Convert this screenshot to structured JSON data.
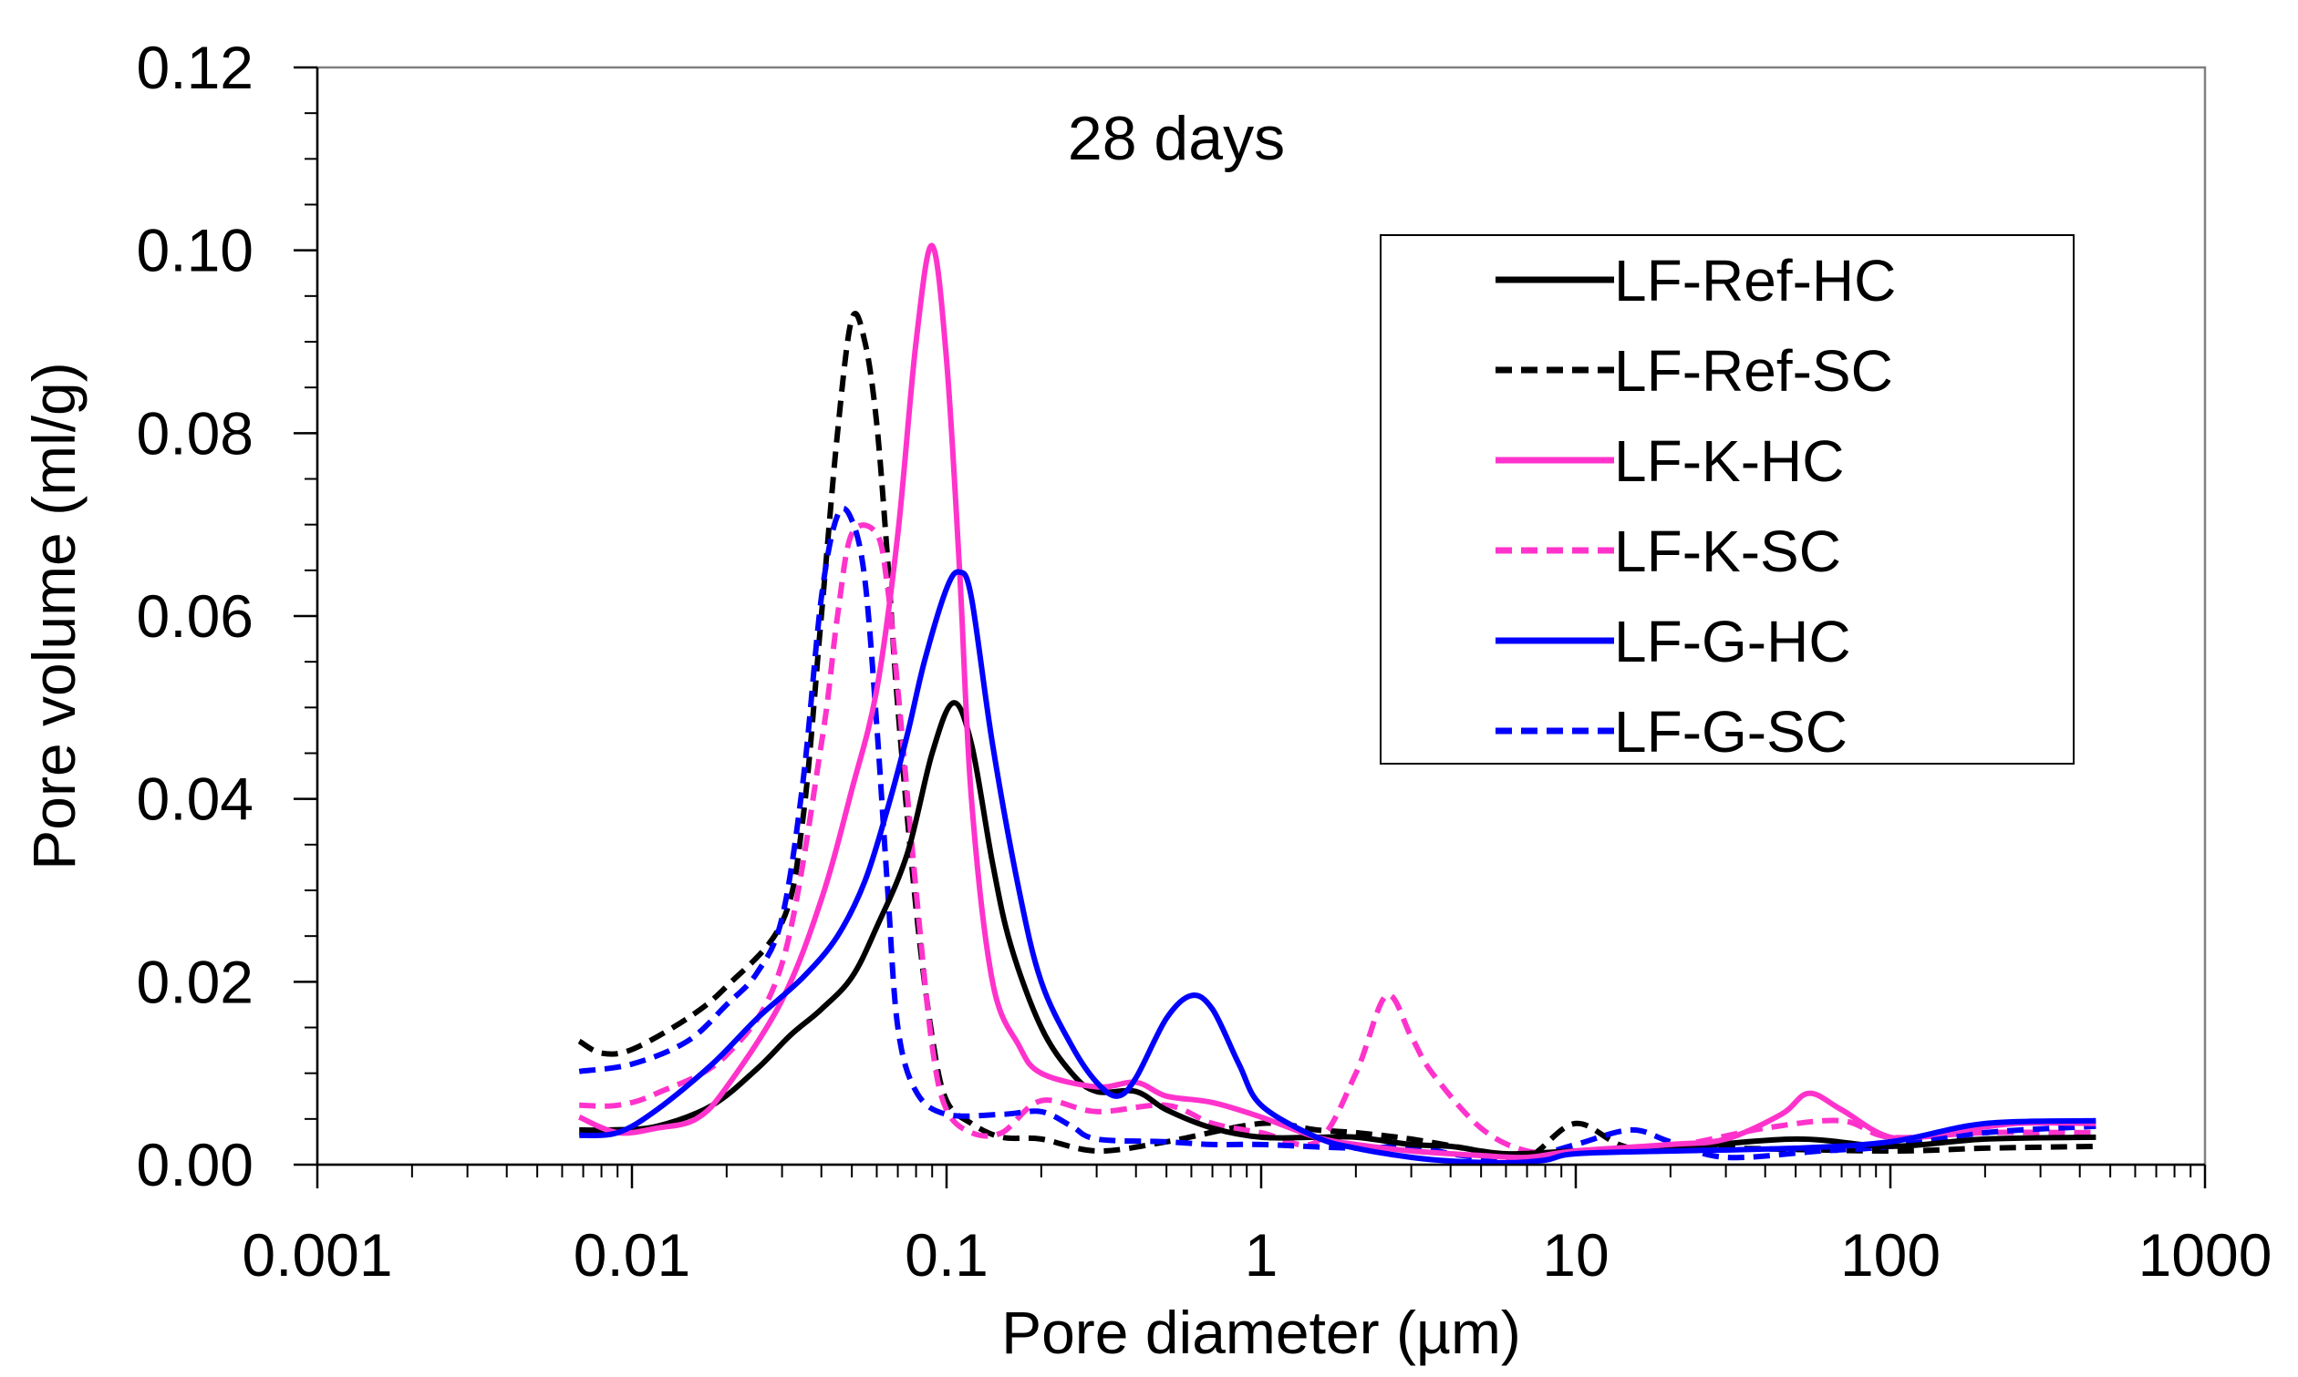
{
  "chart_data": {
    "type": "line",
    "annotation": "28 days",
    "xlabel": "Pore diameter (µm)",
    "ylabel": "Pore volume (ml/g)",
    "xscale": "log",
    "xlim": [
      0.001,
      1000
    ],
    "ylim": [
      0,
      0.12
    ],
    "x_ticks": [
      {
        "value": 0.001,
        "label": "0.001"
      },
      {
        "value": 0.01,
        "label": "0.01"
      },
      {
        "value": 0.1,
        "label": "0.1"
      },
      {
        "value": 1,
        "label": "1"
      },
      {
        "value": 10,
        "label": "10"
      },
      {
        "value": 100,
        "label": "100"
      },
      {
        "value": 1000,
        "label": "1000"
      }
    ],
    "y_ticks": [
      {
        "value": 0,
        "label": "0.00"
      },
      {
        "value": 0.02,
        "label": "0.02"
      },
      {
        "value": 0.04,
        "label": "0.04"
      },
      {
        "value": 0.06,
        "label": "0.06"
      },
      {
        "value": 0.08,
        "label": "0.08"
      },
      {
        "value": 0.1,
        "label": "0.10"
      },
      {
        "value": 0.12,
        "label": "0.12"
      }
    ],
    "legend_position": "right",
    "series": [
      {
        "name": "LF-Ref-HC",
        "color": "#000000",
        "dash": "solid",
        "points": [
          [
            0.0068,
            0.0038
          ],
          [
            0.0085,
            0.0038
          ],
          [
            0.012,
            0.0042
          ],
          [
            0.018,
            0.0065
          ],
          [
            0.025,
            0.0105
          ],
          [
            0.032,
            0.0142
          ],
          [
            0.04,
            0.017
          ],
          [
            0.05,
            0.0205
          ],
          [
            0.06,
            0.026
          ],
          [
            0.075,
            0.034
          ],
          [
            0.09,
            0.045
          ],
          [
            0.105,
            0.0505
          ],
          [
            0.12,
            0.046
          ],
          [
            0.14,
            0.033
          ],
          [
            0.16,
            0.024
          ],
          [
            0.2,
            0.015
          ],
          [
            0.25,
            0.01
          ],
          [
            0.3,
            0.008
          ],
          [
            0.4,
            0.008
          ],
          [
            0.5,
            0.006
          ],
          [
            0.7,
            0.004
          ],
          [
            1,
            0.003
          ],
          [
            1.5,
            0.003
          ],
          [
            2,
            0.003
          ],
          [
            3,
            0.0022
          ],
          [
            4,
            0.002
          ],
          [
            6,
            0.0012
          ],
          [
            10,
            0.0015
          ],
          [
            20,
            0.0018
          ],
          [
            50,
            0.0028
          ],
          [
            100,
            0.002
          ],
          [
            200,
            0.0028
          ],
          [
            450,
            0.003
          ]
        ]
      },
      {
        "name": "LF-Ref-SC",
        "color": "#000000",
        "dash": "dashed",
        "points": [
          [
            0.0068,
            0.0135
          ],
          [
            0.008,
            0.0122
          ],
          [
            0.01,
            0.0126
          ],
          [
            0.015,
            0.016
          ],
          [
            0.02,
            0.0195
          ],
          [
            0.03,
            0.0265
          ],
          [
            0.035,
            0.038
          ],
          [
            0.04,
            0.06
          ],
          [
            0.045,
            0.08
          ],
          [
            0.05,
            0.0925
          ],
          [
            0.055,
            0.09
          ],
          [
            0.06,
            0.081
          ],
          [
            0.065,
            0.066
          ],
          [
            0.07,
            0.05
          ],
          [
            0.08,
            0.028
          ],
          [
            0.09,
            0.014
          ],
          [
            0.1,
            0.007
          ],
          [
            0.12,
            0.0045
          ],
          [
            0.15,
            0.003
          ],
          [
            0.2,
            0.0028
          ],
          [
            0.3,
            0.0015
          ],
          [
            0.5,
            0.0025
          ],
          [
            1,
            0.0045
          ],
          [
            1.5,
            0.0038
          ],
          [
            2,
            0.0035
          ],
          [
            3,
            0.0028
          ],
          [
            5,
            0.0015
          ],
          [
            7,
            0.0008
          ],
          [
            10,
            0.0045
          ],
          [
            15,
            0.0018
          ],
          [
            30,
            0.0018
          ],
          [
            100,
            0.0015
          ],
          [
            200,
            0.0018
          ],
          [
            450,
            0.002
          ]
        ]
      },
      {
        "name": "LF-K-HC",
        "color": "#ff33cc",
        "dash": "solid",
        "points": [
          [
            0.0068,
            0.0052
          ],
          [
            0.009,
            0.0035
          ],
          [
            0.012,
            0.004
          ],
          [
            0.016,
            0.005
          ],
          [
            0.02,
            0.0085
          ],
          [
            0.03,
            0.018
          ],
          [
            0.04,
            0.029
          ],
          [
            0.05,
            0.041
          ],
          [
            0.06,
            0.052
          ],
          [
            0.07,
            0.069
          ],
          [
            0.08,
            0.09
          ],
          [
            0.09,
            0.1005
          ],
          [
            0.1,
            0.088
          ],
          [
            0.11,
            0.065
          ],
          [
            0.12,
            0.04
          ],
          [
            0.14,
            0.02
          ],
          [
            0.17,
            0.013
          ],
          [
            0.2,
            0.01
          ],
          [
            0.3,
            0.0085
          ],
          [
            0.4,
            0.009
          ],
          [
            0.5,
            0.0075
          ],
          [
            0.7,
            0.0068
          ],
          [
            1,
            0.0052
          ],
          [
            1.5,
            0.003
          ],
          [
            2,
            0.0022
          ],
          [
            3,
            0.0015
          ],
          [
            5,
            0.001
          ],
          [
            7,
            0.0008
          ],
          [
            10,
            0.0015
          ],
          [
            20,
            0.0022
          ],
          [
            30,
            0.0028
          ],
          [
            45,
            0.0055
          ],
          [
            55,
            0.0078
          ],
          [
            70,
            0.006
          ],
          [
            100,
            0.003
          ],
          [
            150,
            0.0035
          ],
          [
            250,
            0.0045
          ],
          [
            450,
            0.0045
          ]
        ]
      },
      {
        "name": "LF-K-SC",
        "color": "#ff33cc",
        "dash": "dashed",
        "points": [
          [
            0.0068,
            0.0065
          ],
          [
            0.009,
            0.0065
          ],
          [
            0.012,
            0.0078
          ],
          [
            0.02,
            0.012
          ],
          [
            0.03,
            0.022
          ],
          [
            0.04,
            0.046
          ],
          [
            0.045,
            0.06
          ],
          [
            0.05,
            0.069
          ],
          [
            0.06,
            0.069
          ],
          [
            0.065,
            0.063
          ],
          [
            0.07,
            0.052
          ],
          [
            0.08,
            0.03
          ],
          [
            0.09,
            0.013
          ],
          [
            0.1,
            0.006
          ],
          [
            0.12,
            0.0035
          ],
          [
            0.15,
            0.0035
          ],
          [
            0.2,
            0.007
          ],
          [
            0.3,
            0.0058
          ],
          [
            0.5,
            0.0065
          ],
          [
            0.7,
            0.0045
          ],
          [
            1,
            0.0035
          ],
          [
            1.5,
            0.0025
          ],
          [
            2,
            0.01
          ],
          [
            2.5,
            0.0185
          ],
          [
            3,
            0.014
          ],
          [
            3.5,
            0.01
          ],
          [
            5,
            0.004
          ],
          [
            7,
            0.0015
          ],
          [
            10,
            0.0015
          ],
          [
            20,
            0.002
          ],
          [
            40,
            0.004
          ],
          [
            70,
            0.0048
          ],
          [
            100,
            0.003
          ],
          [
            200,
            0.0035
          ],
          [
            450,
            0.0035
          ]
        ]
      },
      {
        "name": "LF-G-HC",
        "color": "#0000ff",
        "dash": "solid",
        "points": [
          [
            0.0068,
            0.0032
          ],
          [
            0.009,
            0.0035
          ],
          [
            0.012,
            0.006
          ],
          [
            0.018,
            0.011
          ],
          [
            0.025,
            0.016
          ],
          [
            0.035,
            0.0205
          ],
          [
            0.045,
            0.025
          ],
          [
            0.055,
            0.031
          ],
          [
            0.065,
            0.039
          ],
          [
            0.075,
            0.047
          ],
          [
            0.085,
            0.055
          ],
          [
            0.1,
            0.063
          ],
          [
            0.11,
            0.0648
          ],
          [
            0.12,
            0.062
          ],
          [
            0.14,
            0.046
          ],
          [
            0.17,
            0.03
          ],
          [
            0.2,
            0.02
          ],
          [
            0.25,
            0.013
          ],
          [
            0.3,
            0.009
          ],
          [
            0.35,
            0.0075
          ],
          [
            0.4,
            0.0095
          ],
          [
            0.5,
            0.016
          ],
          [
            0.6,
            0.0185
          ],
          [
            0.7,
            0.017
          ],
          [
            0.85,
            0.011
          ],
          [
            1,
            0.0065
          ],
          [
            1.5,
            0.003
          ],
          [
            2,
            0.0018
          ],
          [
            3,
            0.0008
          ],
          [
            4,
            0.0004
          ],
          [
            6,
            0.0002
          ],
          [
            8,
            0.0005
          ],
          [
            10,
            0.0012
          ],
          [
            20,
            0.0015
          ],
          [
            50,
            0.0018
          ],
          [
            100,
            0.0025
          ],
          [
            200,
            0.0045
          ],
          [
            450,
            0.0048
          ]
        ]
      },
      {
        "name": "LF-G-SC",
        "color": "#0000ff",
        "dash": "dashed",
        "points": [
          [
            0.0068,
            0.0102
          ],
          [
            0.01,
            0.011
          ],
          [
            0.015,
            0.0135
          ],
          [
            0.02,
            0.0175
          ],
          [
            0.025,
            0.021
          ],
          [
            0.03,
            0.027
          ],
          [
            0.035,
            0.042
          ],
          [
            0.04,
            0.062
          ],
          [
            0.045,
            0.071
          ],
          [
            0.05,
            0.0705
          ],
          [
            0.055,
            0.064
          ],
          [
            0.06,
            0.048
          ],
          [
            0.065,
            0.03
          ],
          [
            0.07,
            0.015
          ],
          [
            0.08,
            0.008
          ],
          [
            0.1,
            0.0055
          ],
          [
            0.15,
            0.0055
          ],
          [
            0.2,
            0.0058
          ],
          [
            0.25,
            0.0042
          ],
          [
            0.3,
            0.0028
          ],
          [
            0.5,
            0.0025
          ],
          [
            0.7,
            0.0022
          ],
          [
            1,
            0.0022
          ],
          [
            2,
            0.0018
          ],
          [
            3,
            0.002
          ],
          [
            4,
            0.0012
          ],
          [
            5,
            0.0008
          ],
          [
            7,
            0.0008
          ],
          [
            10,
            0.0022
          ],
          [
            15,
            0.0038
          ],
          [
            20,
            0.0025
          ],
          [
            30,
            0.0008
          ],
          [
            60,
            0.0015
          ],
          [
            100,
            0.002
          ],
          [
            200,
            0.0035
          ],
          [
            450,
            0.0042
          ]
        ]
      }
    ]
  }
}
